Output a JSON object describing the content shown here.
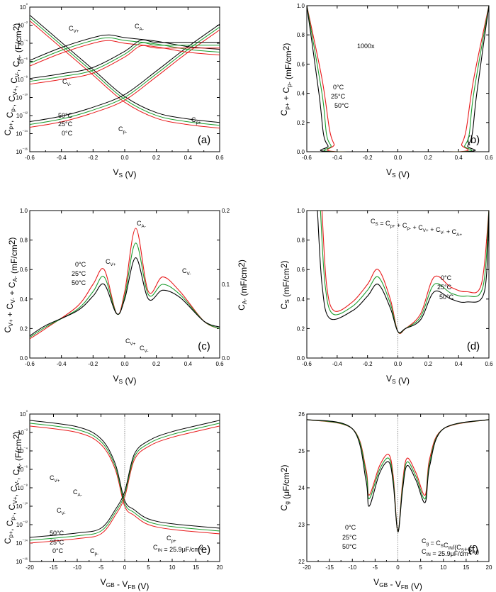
{
  "colors": {
    "t0": "#e8191a",
    "t25": "#1c9c2e",
    "t50": "#000000",
    "axis": "#000000",
    "dotted": "#666666"
  },
  "chart_data": [
    {
      "panel": "(a)",
      "type": "line",
      "yscale": "log",
      "xlim": [
        -0.6,
        0.6
      ],
      "ylim": [
        1e-16,
        1
      ],
      "xlabel": "V",
      "xlabel_sub": "S",
      "xlabel_unit": "(V)",
      "ylabel": "C_p+, C_p-, C_V+, C_V-, C_A- (F/cm²)",
      "xticks": [
        "-0.6",
        "-0.4",
        "-0.2",
        "0.0",
        "0.2",
        "0.4",
        "0.6"
      ],
      "yticks": [
        "10⁻¹⁶",
        "10⁻¹⁴",
        "10⁻¹²",
        "10⁻¹⁰",
        "10⁻⁸",
        "10⁻⁶",
        "10⁻⁴",
        "10⁻²",
        "10⁰"
      ],
      "annotations": [
        "C_V+",
        "C_A-",
        "C_V-",
        "C_p-",
        "C_p+",
        "50°C",
        "25°C",
        "0°C"
      ],
      "series": [
        {
          "name": "C_p- 0°C",
          "x": [
            -0.6,
            -0.4,
            -0.2,
            0.0,
            0.2,
            0.4,
            0.6
          ],
          "values": [
            0.03,
            3e-05,
            3e-08,
            3e-11,
            5e-13,
            1e-13,
            4e-14
          ]
        },
        {
          "name": "C_p+ 0°C",
          "x": [
            -0.6,
            -0.4,
            -0.2,
            0.0,
            0.2,
            0.4,
            0.6
          ],
          "values": [
            5e-14,
            2e-13,
            2e-12,
            5e-11,
            2e-08,
            1e-05,
            0.003
          ]
        },
        {
          "name": "C_V+ 0°C",
          "x": [
            -0.6,
            -0.4,
            -0.2,
            -0.1,
            0.0,
            0.2,
            0.4,
            0.6
          ],
          "values": [
            3e-07,
            8e-06,
            0.0001,
            0.0002,
            0.0001,
            4e-05,
            1e-05,
            5e-06
          ]
        },
        {
          "name": "C_A- 0°C",
          "x": [
            -0.6,
            -0.4,
            -0.2,
            0.0,
            0.1,
            0.2,
            0.4,
            0.6
          ],
          "values": [
            3e-09,
            1e-08,
            5e-08,
            3e-06,
            5e-05,
            3e-05,
            3e-05,
            3e-05
          ]
        }
      ]
    },
    {
      "panel": "(b)",
      "type": "line",
      "xlim": [
        -0.6,
        0.6
      ],
      "ylim": [
        0,
        1
      ],
      "xlabel": "V",
      "xlabel_sub": "S",
      "xlabel_unit": "(V)",
      "ylabel": "C_p+ + C_p- (mF/cm²)",
      "xticks": [
        "-0.6",
        "-0.4",
        "-0.2",
        "0.0",
        "0.2",
        "0.4",
        "0.6"
      ],
      "yticks": [
        "0.0",
        "0.2",
        "0.4",
        "0.6",
        "0.8",
        "1.0"
      ],
      "annotations": [
        "1000x",
        "0°C",
        "25°C",
        "50°C"
      ],
      "series": [
        {
          "name": "0°C",
          "x": [
            -0.6,
            -0.5,
            -0.45,
            -0.42,
            -0.4,
            0.4,
            0.42,
            0.45,
            0.5,
            0.6
          ],
          "values": [
            1,
            0.5,
            0.15,
            0.05,
            0.0,
            0.0,
            0.05,
            0.15,
            0.5,
            1
          ]
        },
        {
          "name": "25°C",
          "x": [
            -0.6,
            -0.5,
            -0.47,
            -0.44,
            -0.42,
            0.42,
            0.44,
            0.47,
            0.5,
            0.6
          ],
          "values": [
            1,
            0.4,
            0.12,
            0.04,
            0.0,
            0.0,
            0.04,
            0.12,
            0.4,
            1
          ]
        },
        {
          "name": "50°C",
          "x": [
            -0.6,
            -0.52,
            -0.49,
            -0.46,
            -0.44,
            0.44,
            0.46,
            0.49,
            0.52,
            0.6
          ],
          "values": [
            1,
            0.4,
            0.12,
            0.04,
            0.0,
            0.0,
            0.04,
            0.12,
            0.4,
            1
          ]
        }
      ]
    },
    {
      "panel": "(c)",
      "type": "line",
      "xlim": [
        -0.6,
        0.6
      ],
      "ylim": [
        0,
        1
      ],
      "y2lim": [
        0,
        0.2
      ],
      "xlabel": "V",
      "xlabel_sub": "S",
      "xlabel_unit": "(V)",
      "ylabel": "C_V+ + C_V- + C_A- (mF/cm²)",
      "y2label": "C_A- (mF/cm²)",
      "xticks": [
        "-0.6",
        "-0.4",
        "-0.2",
        "0.0",
        "0.2",
        "0.4",
        "0.6"
      ],
      "yticks": [
        "0.0",
        "0.2",
        "0.4",
        "0.6",
        "0.8",
        "1.0"
      ],
      "y2ticks": [
        "0.0",
        "0.1",
        "0.2"
      ],
      "annotations": [
        "C_A-",
        "C_V+",
        "C_V-",
        "C_V+",
        "C_V-",
        "0°C",
        "25°C",
        "50°C"
      ],
      "series": [
        {
          "name": "0°C",
          "x": [
            -0.6,
            -0.5,
            -0.3,
            -0.2,
            -0.13,
            -0.05,
            0.0,
            0.07,
            0.15,
            0.24,
            0.35,
            0.5,
            0.6
          ],
          "values": [
            0.13,
            0.2,
            0.35,
            0.5,
            0.6,
            0.3,
            0.45,
            0.88,
            0.45,
            0.55,
            0.45,
            0.25,
            0.2
          ]
        },
        {
          "name": "25°C",
          "x": [
            -0.6,
            -0.5,
            -0.3,
            -0.2,
            -0.13,
            -0.05,
            0.0,
            0.07,
            0.15,
            0.24,
            0.35,
            0.5,
            0.6
          ],
          "values": [
            0.14,
            0.21,
            0.33,
            0.45,
            0.55,
            0.3,
            0.42,
            0.78,
            0.43,
            0.5,
            0.43,
            0.25,
            0.2
          ]
        },
        {
          "name": "50°C",
          "x": [
            -0.6,
            -0.5,
            -0.3,
            -0.2,
            -0.13,
            -0.05,
            0.0,
            0.07,
            0.15,
            0.24,
            0.35,
            0.5,
            0.6
          ],
          "values": [
            0.15,
            0.22,
            0.32,
            0.42,
            0.5,
            0.3,
            0.4,
            0.68,
            0.4,
            0.46,
            0.41,
            0.25,
            0.21
          ]
        }
      ]
    },
    {
      "panel": "(d)",
      "type": "line",
      "xlim": [
        -0.6,
        0.6
      ],
      "ylim": [
        0,
        1
      ],
      "xlabel": "V",
      "xlabel_sub": "S",
      "xlabel_unit": "(V)",
      "ylabel": "C_S (mF/cm²)",
      "xticks": [
        "-0.6",
        "-0.4",
        "-0.2",
        "0.0",
        "0.2",
        "0.4",
        "0.6"
      ],
      "yticks": [
        "0.0",
        "0.2",
        "0.4",
        "0.6",
        "0.8",
        "1.0"
      ],
      "formula": "C_S = C_p+ + C_p- + C_V+ + C_V- + C_A+",
      "annotations": [
        "0°C",
        "25°C",
        "50°C"
      ],
      "series": [
        {
          "name": "0°C",
          "x": [
            -0.5,
            -0.47,
            -0.42,
            -0.3,
            -0.2,
            -0.13,
            -0.05,
            0.0,
            0.05,
            0.15,
            0.24,
            0.35,
            0.45,
            0.55,
            0.6
          ],
          "values": [
            1,
            0.5,
            0.32,
            0.38,
            0.5,
            0.6,
            0.4,
            0.18,
            0.2,
            0.3,
            0.55,
            0.48,
            0.45,
            0.5,
            1
          ]
        },
        {
          "name": "25°C",
          "x": [
            -0.51,
            -0.48,
            -0.43,
            -0.3,
            -0.2,
            -0.13,
            -0.05,
            0.0,
            0.05,
            0.15,
            0.24,
            0.35,
            0.45,
            0.56,
            0.6
          ],
          "values": [
            1,
            0.5,
            0.3,
            0.35,
            0.46,
            0.55,
            0.37,
            0.18,
            0.2,
            0.28,
            0.5,
            0.44,
            0.42,
            0.48,
            1
          ]
        },
        {
          "name": "50°C",
          "x": [
            -0.53,
            -0.5,
            -0.45,
            -0.3,
            -0.2,
            -0.13,
            -0.05,
            0.0,
            0.05,
            0.15,
            0.24,
            0.35,
            0.45,
            0.57,
            0.6
          ],
          "values": [
            1,
            0.5,
            0.27,
            0.32,
            0.42,
            0.5,
            0.34,
            0.18,
            0.2,
            0.26,
            0.45,
            0.4,
            0.38,
            0.45,
            1
          ]
        }
      ]
    },
    {
      "panel": "(e)",
      "type": "line",
      "yscale": "log",
      "xlim": [
        -20,
        20
      ],
      "ylim": [
        1e-16,
        1
      ],
      "xlabel": "V",
      "xlabel_sub": "GB",
      "xlabel_mid": " - V",
      "xlabel_sub2": "FB",
      "xlabel_unit": "(V)",
      "ylabel": "C_p+, C_p-, C_V+, C_V-, C_A- (F/cm²)",
      "xticks": [
        "-20",
        "-15",
        "-10",
        "-5",
        "0",
        "5",
        "10",
        "15",
        "20"
      ],
      "yticks": [
        "10⁻¹⁶",
        "10⁻¹⁴",
        "10⁻¹²",
        "10⁻¹⁰",
        "10⁻⁸",
        "10⁻⁶",
        "10⁻⁴",
        "10⁻²",
        "10⁰"
      ],
      "annotations": [
        "C_V+",
        "C_A-",
        "C_V-",
        "C_p-",
        "C_p+",
        "50°C",
        "25°C",
        "0°C",
        "C_IN = 25.9μF/cm²"
      ],
      "series": [
        {
          "name": "C_p-",
          "x": [
            -20,
            -10,
            -5,
            -2,
            0,
            2,
            5,
            10,
            20
          ],
          "values": [
            0.05,
            0.01,
            0.0005,
            1e-06,
            1e-10,
            1e-11,
            1e-12,
            3e-13,
            1e-13
          ]
        },
        {
          "name": "C_p+",
          "x": [
            -20,
            -10,
            -5,
            -2,
            0,
            2,
            5,
            10,
            20
          ],
          "values": [
            1e-14,
            3e-14,
            1e-13,
            1e-11,
            1e-09,
            1e-05,
            0.0003,
            0.003,
            0.05
          ]
        }
      ]
    },
    {
      "panel": "(f)",
      "type": "line",
      "xlim": [
        -20,
        20
      ],
      "ylim": [
        22,
        26
      ],
      "xlabel": "V",
      "xlabel_sub": "GB",
      "xlabel_mid": " - V",
      "xlabel_sub2": "FB",
      "xlabel_unit": "(V)",
      "ylabel": "C_g (μF/cm²)",
      "xticks": [
        "-20",
        "-15",
        "-10",
        "-5",
        "0",
        "5",
        "10",
        "15",
        "20"
      ],
      "yticks": [
        "22",
        "23",
        "24",
        "25",
        "26"
      ],
      "formula1": "C_g = C_S C_IN / (C_S + C_IN)",
      "formula2": "C_IN = 25.9μF/cm²",
      "annotations": [
        "0°C",
        "25°C",
        "50°C"
      ],
      "series": [
        {
          "name": "0°C",
          "x": [
            -20,
            -10,
            -7,
            -6.3,
            -4,
            -2,
            -1,
            0,
            1,
            2,
            4,
            6,
            7,
            10,
            20
          ],
          "values": [
            25.85,
            25.6,
            24.5,
            23.8,
            24.6,
            24.9,
            24.3,
            22.8,
            24.1,
            24.8,
            24.4,
            23.8,
            24.8,
            25.6,
            25.85
          ]
        },
        {
          "name": "25°C",
          "x": [
            -20,
            -10,
            -7,
            -6.3,
            -4,
            -2,
            -1,
            0,
            1,
            2,
            4,
            6,
            7,
            10,
            20
          ],
          "values": [
            25.85,
            25.6,
            24.4,
            23.7,
            24.5,
            24.8,
            24.2,
            22.8,
            24.0,
            24.7,
            24.3,
            23.7,
            24.7,
            25.6,
            25.85
          ]
        },
        {
          "name": "50°C",
          "x": [
            -20,
            -10,
            -7,
            -6.3,
            -4,
            -2,
            -1,
            0,
            1,
            2,
            4,
            6,
            7,
            10,
            20
          ],
          "values": [
            25.85,
            25.6,
            24.2,
            23.5,
            24.4,
            24.7,
            24.1,
            22.8,
            23.9,
            24.6,
            24.2,
            23.6,
            24.6,
            25.6,
            25.85
          ]
        }
      ]
    }
  ]
}
